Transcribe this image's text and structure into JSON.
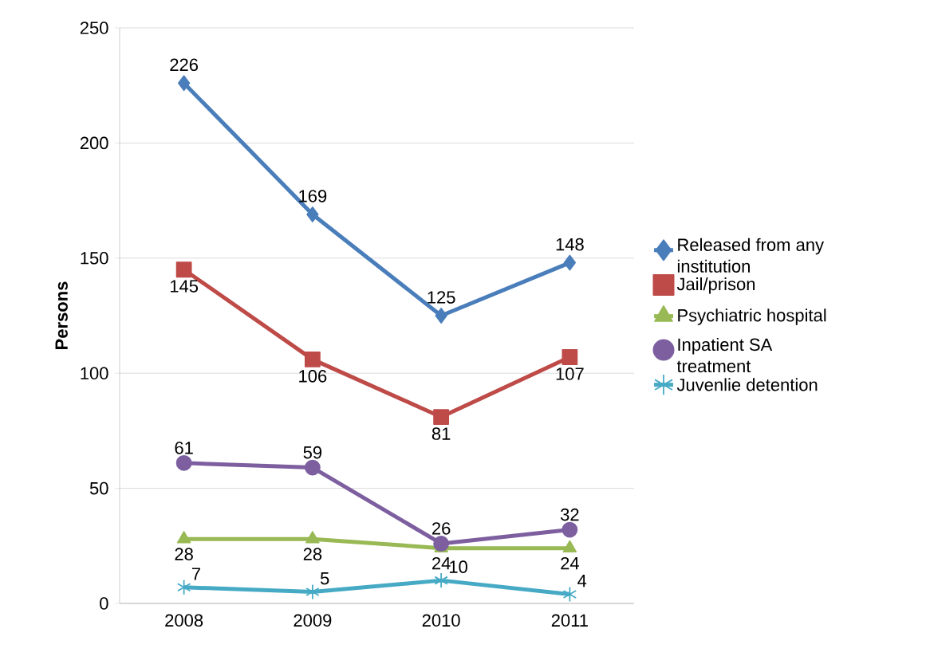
{
  "chart_data": {
    "type": "line",
    "ylabel": "Persons",
    "categories": [
      "2008",
      "2009",
      "2010",
      "2011"
    ],
    "ylim": [
      0,
      250
    ],
    "yticks": [
      0,
      50,
      100,
      150,
      200,
      250
    ],
    "grid": "y",
    "legend": "right",
    "data_labels": true,
    "series": [
      {
        "name": "Released from any institution",
        "color": "#4a7ebb",
        "marker": "diamond",
        "values": [
          226,
          169,
          125,
          148
        ]
      },
      {
        "name": "Jail/prison",
        "color": "#be4b48",
        "marker": "square",
        "values": [
          145,
          106,
          81,
          107
        ]
      },
      {
        "name": "Psychiatric hospital",
        "color": "#98b954",
        "marker": "triangle",
        "values": [
          28,
          28,
          24,
          24
        ]
      },
      {
        "name": "Inpatient SA treatment",
        "color": "#7d5fa0",
        "marker": "circle",
        "values": [
          61,
          59,
          26,
          32
        ]
      },
      {
        "name": "Juvenlie detention",
        "color": "#46aac5",
        "marker": "cross",
        "values": [
          7,
          5,
          10,
          4
        ]
      }
    ]
  }
}
